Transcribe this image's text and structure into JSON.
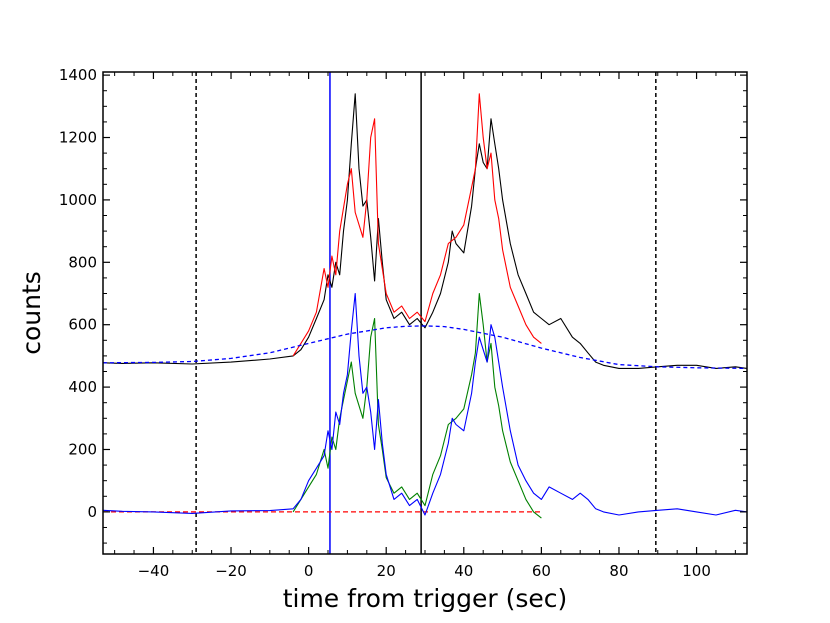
{
  "chart_data": {
    "type": "line",
    "xlabel": "time from trigger (sec)",
    "ylabel": "counts",
    "xlim": [
      -53,
      113
    ],
    "ylim": [
      -135,
      1410
    ],
    "xticks": [
      -40,
      -20,
      0,
      20,
      40,
      60,
      80,
      100
    ],
    "yticks": [
      0,
      200,
      400,
      600,
      800,
      1000,
      1200,
      1400
    ],
    "grid": false,
    "vlines": [
      {
        "x": -29,
        "color": "#000000",
        "style": "dashed"
      },
      {
        "x": 5.5,
        "color": "#0000ff",
        "style": "solid"
      },
      {
        "x": 29,
        "color": "#000000",
        "style": "solid"
      },
      {
        "x": 89.5,
        "color": "#000000",
        "style": "dashed"
      }
    ],
    "hlines": [
      {
        "y": 0,
        "color": "#ff0000",
        "style": "dashed",
        "xrange": [
          -53,
          60
        ]
      }
    ],
    "series": [
      {
        "color": "#000000",
        "style": "solid",
        "points": [
          [
            -53,
            478
          ],
          [
            -48,
            476
          ],
          [
            -40,
            478
          ],
          [
            -30,
            474
          ],
          [
            -20,
            480
          ],
          [
            -10,
            490
          ],
          [
            -4,
            500
          ],
          [
            -2,
            520
          ],
          [
            0,
            560
          ],
          [
            2,
            620
          ],
          [
            4,
            680
          ],
          [
            5,
            760
          ],
          [
            6,
            720
          ],
          [
            7,
            800
          ],
          [
            8,
            760
          ],
          [
            9,
            900
          ],
          [
            10,
            1000
          ],
          [
            11,
            1180
          ],
          [
            12,
            1340
          ],
          [
            13,
            1100
          ],
          [
            14,
            980
          ],
          [
            15,
            1000
          ],
          [
            16,
            880
          ],
          [
            17,
            740
          ],
          [
            18,
            940
          ],
          [
            19,
            800
          ],
          [
            20,
            680
          ],
          [
            22,
            620
          ],
          [
            24,
            640
          ],
          [
            26,
            600
          ],
          [
            28,
            620
          ],
          [
            30,
            590
          ],
          [
            32,
            640
          ],
          [
            34,
            700
          ],
          [
            36,
            800
          ],
          [
            37,
            900
          ],
          [
            38,
            860
          ],
          [
            40,
            830
          ],
          [
            42,
            980
          ],
          [
            43,
            1100
          ],
          [
            44,
            1180
          ],
          [
            45,
            1120
          ],
          [
            46,
            1100
          ],
          [
            47,
            1260
          ],
          [
            48,
            1180
          ],
          [
            49,
            1100
          ],
          [
            50,
            1000
          ],
          [
            52,
            860
          ],
          [
            54,
            760
          ],
          [
            56,
            700
          ],
          [
            58,
            640
          ],
          [
            60,
            620
          ],
          [
            62,
            600
          ],
          [
            65,
            620
          ],
          [
            68,
            560
          ],
          [
            70,
            540
          ],
          [
            72,
            510
          ],
          [
            74,
            480
          ],
          [
            76,
            470
          ],
          [
            80,
            460
          ],
          [
            85,
            460
          ],
          [
            90,
            465
          ],
          [
            95,
            470
          ],
          [
            100,
            470
          ],
          [
            105,
            460
          ],
          [
            110,
            465
          ],
          [
            113,
            460
          ]
        ]
      },
      {
        "color": "#ff0000",
        "style": "solid",
        "points": [
          [
            -4,
            500
          ],
          [
            -2,
            540
          ],
          [
            0,
            580
          ],
          [
            2,
            640
          ],
          [
            4,
            780
          ],
          [
            5,
            720
          ],
          [
            6,
            820
          ],
          [
            7,
            760
          ],
          [
            8,
            900
          ],
          [
            10,
            1050
          ],
          [
            11,
            1100
          ],
          [
            12,
            960
          ],
          [
            14,
            880
          ],
          [
            15,
            1000
          ],
          [
            16,
            1200
          ],
          [
            17,
            1260
          ],
          [
            18,
            860
          ],
          [
            19,
            780
          ],
          [
            20,
            700
          ],
          [
            22,
            640
          ],
          [
            24,
            660
          ],
          [
            26,
            620
          ],
          [
            28,
            640
          ],
          [
            30,
            610
          ],
          [
            32,
            700
          ],
          [
            34,
            760
          ],
          [
            36,
            860
          ],
          [
            38,
            880
          ],
          [
            40,
            920
          ],
          [
            42,
            1040
          ],
          [
            43,
            1100
          ],
          [
            44,
            1340
          ],
          [
            45,
            1200
          ],
          [
            46,
            1100
          ],
          [
            47,
            1150
          ],
          [
            48,
            1000
          ],
          [
            49,
            940
          ],
          [
            50,
            840
          ],
          [
            52,
            720
          ],
          [
            54,
            660
          ],
          [
            56,
            600
          ],
          [
            58,
            560
          ],
          [
            60,
            540
          ]
        ]
      },
      {
        "color": "#008000",
        "style": "solid",
        "points": [
          [
            -4,
            0
          ],
          [
            -2,
            40
          ],
          [
            0,
            80
          ],
          [
            2,
            120
          ],
          [
            4,
            200
          ],
          [
            5,
            140
          ],
          [
            6,
            240
          ],
          [
            7,
            200
          ],
          [
            8,
            300
          ],
          [
            10,
            420
          ],
          [
            11,
            480
          ],
          [
            12,
            380
          ],
          [
            14,
            300
          ],
          [
            15,
            400
          ],
          [
            16,
            560
          ],
          [
            17,
            620
          ],
          [
            18,
            280
          ],
          [
            19,
            200
          ],
          [
            20,
            110
          ],
          [
            22,
            60
          ],
          [
            24,
            80
          ],
          [
            26,
            40
          ],
          [
            28,
            60
          ],
          [
            30,
            20
          ],
          [
            32,
            120
          ],
          [
            34,
            180
          ],
          [
            36,
            280
          ],
          [
            38,
            300
          ],
          [
            40,
            330
          ],
          [
            42,
            440
          ],
          [
            43,
            510
          ],
          [
            44,
            700
          ],
          [
            45,
            600
          ],
          [
            46,
            480
          ],
          [
            47,
            540
          ],
          [
            48,
            400
          ],
          [
            49,
            340
          ],
          [
            50,
            260
          ],
          [
            52,
            160
          ],
          [
            54,
            100
          ],
          [
            56,
            40
          ],
          [
            58,
            0
          ],
          [
            60,
            -20
          ]
        ]
      },
      {
        "color": "#0000ff",
        "style": "solid",
        "points": [
          [
            -53,
            5
          ],
          [
            -48,
            2
          ],
          [
            -40,
            0
          ],
          [
            -30,
            -5
          ],
          [
            -20,
            3
          ],
          [
            -10,
            4
          ],
          [
            -4,
            10
          ],
          [
            -2,
            40
          ],
          [
            0,
            100
          ],
          [
            2,
            140
          ],
          [
            4,
            180
          ],
          [
            5,
            260
          ],
          [
            6,
            200
          ],
          [
            7,
            320
          ],
          [
            8,
            280
          ],
          [
            9,
            380
          ],
          [
            10,
            440
          ],
          [
            11,
            580
          ],
          [
            12,
            700
          ],
          [
            13,
            500
          ],
          [
            14,
            380
          ],
          [
            15,
            400
          ],
          [
            16,
            320
          ],
          [
            17,
            200
          ],
          [
            18,
            360
          ],
          [
            19,
            220
          ],
          [
            20,
            120
          ],
          [
            22,
            40
          ],
          [
            24,
            60
          ],
          [
            26,
            20
          ],
          [
            28,
            40
          ],
          [
            30,
            -10
          ],
          [
            32,
            60
          ],
          [
            34,
            120
          ],
          [
            36,
            220
          ],
          [
            37,
            300
          ],
          [
            38,
            280
          ],
          [
            40,
            260
          ],
          [
            42,
            380
          ],
          [
            43,
            480
          ],
          [
            44,
            560
          ],
          [
            45,
            520
          ],
          [
            46,
            480
          ],
          [
            47,
            600
          ],
          [
            48,
            560
          ],
          [
            49,
            480
          ],
          [
            50,
            400
          ],
          [
            52,
            260
          ],
          [
            54,
            150
          ],
          [
            56,
            100
          ],
          [
            58,
            60
          ],
          [
            60,
            40
          ],
          [
            62,
            80
          ],
          [
            65,
            60
          ],
          [
            68,
            40
          ],
          [
            70,
            60
          ],
          [
            72,
            40
          ],
          [
            74,
            10
          ],
          [
            76,
            0
          ],
          [
            80,
            -10
          ],
          [
            85,
            0
          ],
          [
            90,
            5
          ],
          [
            95,
            10
          ],
          [
            100,
            0
          ],
          [
            105,
            -10
          ],
          [
            110,
            5
          ],
          [
            113,
            0
          ]
        ]
      },
      {
        "color": "#0000ff",
        "style": "dashed",
        "points": [
          [
            -53,
            478
          ],
          [
            -40,
            479
          ],
          [
            -30,
            482
          ],
          [
            -20,
            492
          ],
          [
            -10,
            510
          ],
          [
            0,
            540
          ],
          [
            10,
            570
          ],
          [
            20,
            590
          ],
          [
            25,
            595
          ],
          [
            30,
            596
          ],
          [
            35,
            594
          ],
          [
            40,
            585
          ],
          [
            50,
            560
          ],
          [
            60,
            525
          ],
          [
            70,
            495
          ],
          [
            80,
            472
          ],
          [
            90,
            465
          ],
          [
            100,
            462
          ],
          [
            113,
            460
          ]
        ]
      }
    ]
  }
}
